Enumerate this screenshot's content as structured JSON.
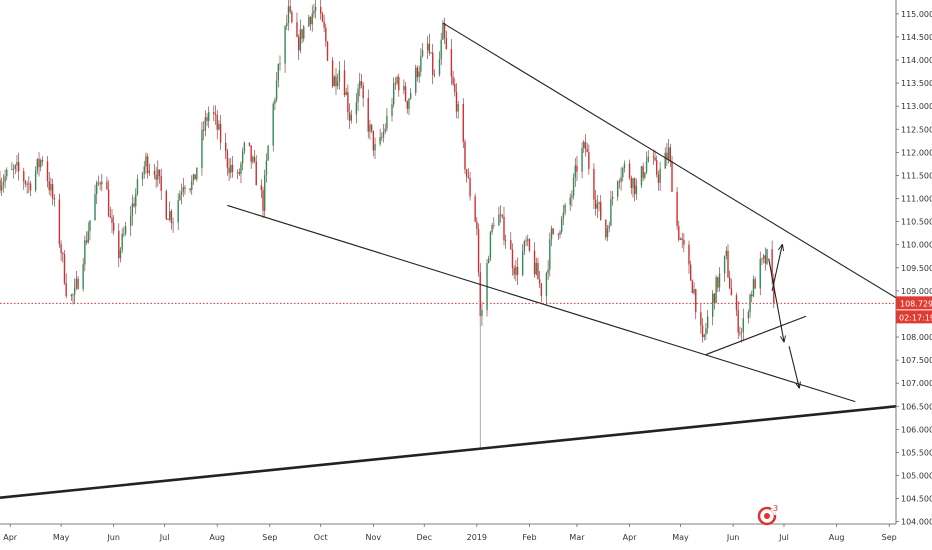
{
  "chart_data": {
    "type": "line",
    "instrument_kind": "candlestick",
    "title": "",
    "xlabel": "",
    "ylabel": "",
    "x_range": [
      "2018-03-26",
      "2019-09-05"
    ],
    "ylim": [
      103.95,
      115.3
    ],
    "y_ticks": [
      "104.000",
      "104.500",
      "105.000",
      "105.500",
      "106.000",
      "106.500",
      "107.000",
      "107.500",
      "108.000",
      "108.500",
      "109.000",
      "109.500",
      "110.000",
      "110.500",
      "111.000",
      "111.500",
      "112.000",
      "112.500",
      "113.000",
      "113.500",
      "114.000",
      "114.500",
      "115.000"
    ],
    "x_ticks": [
      {
        "date": "2018-04-01",
        "label": "Apr"
      },
      {
        "date": "2018-05-01",
        "label": "May"
      },
      {
        "date": "2018-06-01",
        "label": "Jun"
      },
      {
        "date": "2018-07-01",
        "label": "Jul"
      },
      {
        "date": "2018-08-01",
        "label": "Aug"
      },
      {
        "date": "2018-09-01",
        "label": "Sep"
      },
      {
        "date": "2018-10-01",
        "label": "Oct"
      },
      {
        "date": "2018-11-01",
        "label": "Nov"
      },
      {
        "date": "2018-12-01",
        "label": "Dec"
      },
      {
        "date": "2019-01-01",
        "label": "2019"
      },
      {
        "date": "2019-02-01",
        "label": "Feb"
      },
      {
        "date": "2019-03-01",
        "label": "Mar"
      },
      {
        "date": "2019-04-01",
        "label": "Apr"
      },
      {
        "date": "2019-05-01",
        "label": "May"
      },
      {
        "date": "2019-06-01",
        "label": "Jun"
      },
      {
        "date": "2019-07-01",
        "label": "Jul"
      },
      {
        "date": "2019-08-01",
        "label": "Aug"
      },
      {
        "date": "2019-09-01",
        "label": "Sep"
      }
    ],
    "series": [
      {
        "price_path": [
          [
            "2018-03-26",
            111.4
          ],
          [
            "2018-04-05",
            111.6
          ],
          [
            "2018-04-12",
            111.3
          ],
          [
            "2018-04-20",
            111.9
          ],
          [
            "2018-04-26",
            111.0
          ],
          [
            "2018-05-01",
            109.9
          ],
          [
            "2018-05-05",
            108.8
          ],
          [
            "2018-05-09",
            108.9
          ],
          [
            "2018-05-14",
            109.8
          ],
          [
            "2018-05-20",
            110.9
          ],
          [
            "2018-05-26",
            111.7
          ],
          [
            "2018-05-30",
            110.5
          ],
          [
            "2018-06-03",
            109.7
          ],
          [
            "2018-06-08",
            110.3
          ],
          [
            "2018-06-14",
            111.1
          ],
          [
            "2018-06-20",
            111.8
          ],
          [
            "2018-06-26",
            111.6
          ],
          [
            "2018-07-01",
            110.8
          ],
          [
            "2018-07-06",
            110.6
          ],
          [
            "2018-07-12",
            111.4
          ],
          [
            "2018-07-18",
            111.3
          ],
          [
            "2018-07-24",
            112.5
          ],
          [
            "2018-07-28",
            113.0
          ],
          [
            "2018-08-02",
            112.4
          ],
          [
            "2018-08-07",
            111.8
          ],
          [
            "2018-08-13",
            111.4
          ],
          [
            "2018-08-18",
            112.2
          ],
          [
            "2018-08-23",
            111.6
          ],
          [
            "2018-08-28",
            110.9
          ],
          [
            "2018-09-01",
            112.5
          ],
          [
            "2018-09-05",
            113.5
          ],
          [
            "2018-09-08",
            114.2
          ],
          [
            "2018-09-12",
            115.0
          ],
          [
            "2018-09-17",
            114.3
          ],
          [
            "2018-09-23",
            114.9
          ],
          [
            "2018-09-28",
            115.1
          ],
          [
            "2018-10-03",
            114.6
          ],
          [
            "2018-10-08",
            113.5
          ],
          [
            "2018-10-13",
            113.9
          ],
          [
            "2018-10-18",
            112.8
          ],
          [
            "2018-10-24",
            113.4
          ],
          [
            "2018-10-29",
            112.6
          ],
          [
            "2018-11-03",
            111.9
          ],
          [
            "2018-11-09",
            112.7
          ],
          [
            "2018-11-15",
            113.6
          ],
          [
            "2018-11-21",
            113.1
          ],
          [
            "2018-11-27",
            113.8
          ],
          [
            "2018-12-03",
            114.3
          ],
          [
            "2018-12-08",
            113.4
          ],
          [
            "2018-12-12",
            114.6
          ],
          [
            "2018-12-16",
            113.7
          ],
          [
            "2018-12-20",
            113.1
          ],
          [
            "2018-12-26",
            111.5
          ],
          [
            "2019-01-01",
            110.4
          ],
          [
            "2019-01-03",
            108.4
          ],
          [
            "2019-01-05",
            108.8
          ],
          [
            "2019-01-08",
            109.9
          ],
          [
            "2019-01-12",
            110.8
          ],
          [
            "2019-01-18",
            110.2
          ],
          [
            "2019-01-24",
            109.4
          ],
          [
            "2019-01-30",
            110.0
          ],
          [
            "2019-02-04",
            109.5
          ],
          [
            "2019-02-09",
            108.9
          ],
          [
            "2019-02-14",
            110.2
          ],
          [
            "2019-02-20",
            110.5
          ],
          [
            "2019-02-26",
            111.1
          ],
          [
            "2019-03-02",
            111.9
          ],
          [
            "2019-03-06",
            112.1
          ],
          [
            "2019-03-12",
            111.0
          ],
          [
            "2019-03-18",
            110.2
          ],
          [
            "2019-03-24",
            111.5
          ],
          [
            "2019-03-30",
            111.7
          ],
          [
            "2019-04-05",
            111.2
          ],
          [
            "2019-04-12",
            111.9
          ],
          [
            "2019-04-18",
            111.5
          ],
          [
            "2019-04-24",
            112.0
          ],
          [
            "2019-04-29",
            110.4
          ],
          [
            "2019-05-04",
            109.7
          ],
          [
            "2019-05-09",
            109.0
          ],
          [
            "2019-05-14",
            107.8
          ],
          [
            "2019-05-18",
            108.6
          ],
          [
            "2019-05-23",
            109.2
          ],
          [
            "2019-05-28",
            109.7
          ],
          [
            "2019-06-01",
            108.6
          ],
          [
            "2019-06-06",
            108.1
          ],
          [
            "2019-06-11",
            108.9
          ],
          [
            "2019-06-17",
            109.5
          ],
          [
            "2019-06-21",
            109.7
          ],
          [
            "2019-06-26",
            108.7
          ]
        ],
        "current_price": "108.729",
        "current_price_label": "108.729",
        "countdown_label": "02:17:19"
      }
    ],
    "reference_line": {
      "value": 108.729,
      "style": "dotted",
      "color": "#e0322e"
    },
    "drawings": [
      {
        "kind": "trendline",
        "from": [
          "2018-12-12",
          114.8
        ],
        "to": [
          "2019-09-05",
          108.85
        ],
        "width": "thin"
      },
      {
        "kind": "trendline",
        "from": [
          "2018-08-07",
          110.85
        ],
        "to": [
          "2019-08-12",
          106.6
        ],
        "width": "thin"
      },
      {
        "kind": "trendline",
        "from": [
          "2019-05-16",
          107.62
        ],
        "to": [
          "2019-07-14",
          108.45
        ],
        "width": "thin"
      },
      {
        "kind": "trendline",
        "from": [
          "2018-03-26",
          104.52
        ],
        "to": [
          "2019-09-05",
          106.5
        ],
        "width": "thick"
      },
      {
        "kind": "arrow",
        "from": [
          "2019-06-24",
          109.0
        ],
        "to": [
          "2019-06-30",
          110.0
        ]
      },
      {
        "kind": "arrow",
        "from": [
          "2019-06-22",
          109.7
        ],
        "to": [
          "2019-07-01",
          107.9
        ]
      },
      {
        "kind": "arrow",
        "from": [
          "2019-07-04",
          107.8
        ],
        "to": [
          "2019-07-10",
          106.9
        ]
      }
    ],
    "grid": false,
    "legend": "none"
  },
  "colors": {
    "background": "#ffffff",
    "up": "#2e8b57",
    "down": "#d12f2f",
    "wick": "#7a2a2a",
    "drawing": "#222222",
    "price_badge": "#e03a33",
    "axis_text": "#333333"
  },
  "logo_icon": "tradingview-watermark-icon"
}
